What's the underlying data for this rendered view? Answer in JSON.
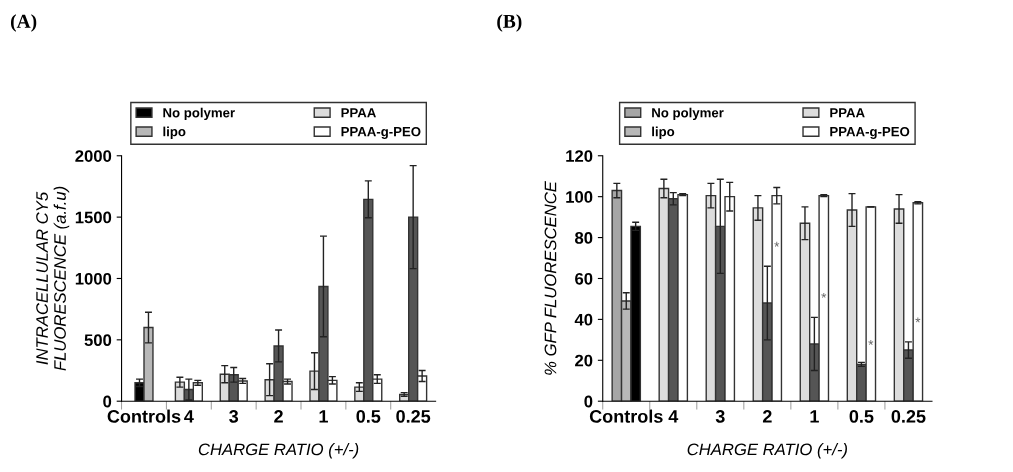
{
  "chart_data": [
    {
      "type": "bar",
      "title": "(A)",
      "xlabel": "CHARGE RATIO (+/-)",
      "ylabel": "INTRACELLULAR CY5\nFLUORESCENCE (a.f.u)",
      "categories": [
        "Controls",
        "4",
        "3",
        "2",
        "1",
        "0.5",
        "0.25"
      ],
      "ylim": [
        0,
        2000
      ],
      "yticks": [
        0,
        500,
        1000,
        1500,
        2000
      ],
      "grid": false,
      "legend": "top",
      "series": [
        {
          "name": "No polymer",
          "color": "#000000",
          "values": [
            150,
            null,
            null,
            null,
            null,
            null,
            null
          ],
          "errors": [
            30,
            null,
            null,
            null,
            null,
            null,
            null
          ]
        },
        {
          "name": "lipo",
          "color": "#b8b8b8",
          "values": [
            600,
            null,
            null,
            null,
            null,
            null,
            null
          ],
          "errors": [
            125,
            null,
            null,
            null,
            null,
            null,
            null
          ]
        },
        {
          "name": "PPAA",
          "color": "#dcdcdc",
          "values": [
            null,
            155,
            220,
            175,
            245,
            115,
            55
          ],
          "errors": [
            null,
            40,
            70,
            130,
            150,
            35,
            15
          ]
        },
        {
          "color": "#555555",
          "values": [
            null,
            95,
            215,
            450,
            935,
            1645,
            1500
          ],
          "errors": [
            null,
            85,
            60,
            130,
            410,
            150,
            420
          ]
        },
        {
          "name": "PPAA-g-PEO",
          "color": "#ffffff",
          "values": [
            null,
            150,
            165,
            160,
            170,
            180,
            205
          ],
          "errors": [
            null,
            20,
            20,
            20,
            30,
            35,
            45
          ]
        }
      ]
    },
    {
      "type": "bar",
      "title": "(B)",
      "xlabel": "CHARGE RATIO (+/-)",
      "ylabel": "% GFP FLUORESCENCE",
      "categories": [
        "Controls",
        "4",
        "3",
        "2",
        "1",
        "0.5",
        "0.25"
      ],
      "ylim": [
        0,
        120
      ],
      "yticks": [
        0,
        20,
        40,
        60,
        80,
        100,
        120
      ],
      "grid": false,
      "legend": "top",
      "annotations": [
        {
          "text": "*",
          "x": "2",
          "y": 75
        },
        {
          "text": "*",
          "x": "1",
          "y": 50
        },
        {
          "text": "*",
          "x": "0.5",
          "y": 27
        },
        {
          "text": "*",
          "x": "0.25",
          "y": 38
        }
      ],
      "series": [
        {
          "name": "No polymer",
          "color": "#a6a6a6",
          "values": [
            103,
            null,
            null,
            null,
            null,
            null,
            null
          ],
          "errors": [
            3.5,
            null,
            null,
            null,
            null,
            null,
            null
          ]
        },
        {
          "name": "lipo",
          "color": "#b8b8b8",
          "values": [
            49,
            null,
            null,
            null,
            null,
            null,
            null
          ],
          "errors": [
            4,
            null,
            null,
            null,
            null,
            null,
            null
          ]
        },
        {
          "color": "#000000",
          "values": [
            85.5,
            null,
            null,
            null,
            null,
            null,
            null
          ],
          "errors": [
            2,
            null,
            null,
            null,
            null,
            null,
            null
          ]
        },
        {
          "name": "PPAA",
          "color": "#dcdcdc",
          "values": [
            null,
            104,
            100.5,
            94.5,
            87,
            93.5,
            94
          ],
          "errors": [
            null,
            4.5,
            6,
            6,
            8,
            8,
            7
          ]
        },
        {
          "color": "#555555",
          "values": [
            null,
            99,
            85.5,
            48,
            28,
            18,
            25
          ],
          "errors": [
            null,
            3,
            23,
            18,
            13,
            1,
            4
          ]
        },
        {
          "name": "PPAA-g-PEO",
          "color": "#ffffff",
          "values": [
            null,
            101,
            100,
            100.5,
            100.5,
            95,
            97
          ],
          "errors": [
            null,
            0.5,
            7,
            4,
            0.5,
            0,
            0.5
          ]
        }
      ]
    }
  ]
}
